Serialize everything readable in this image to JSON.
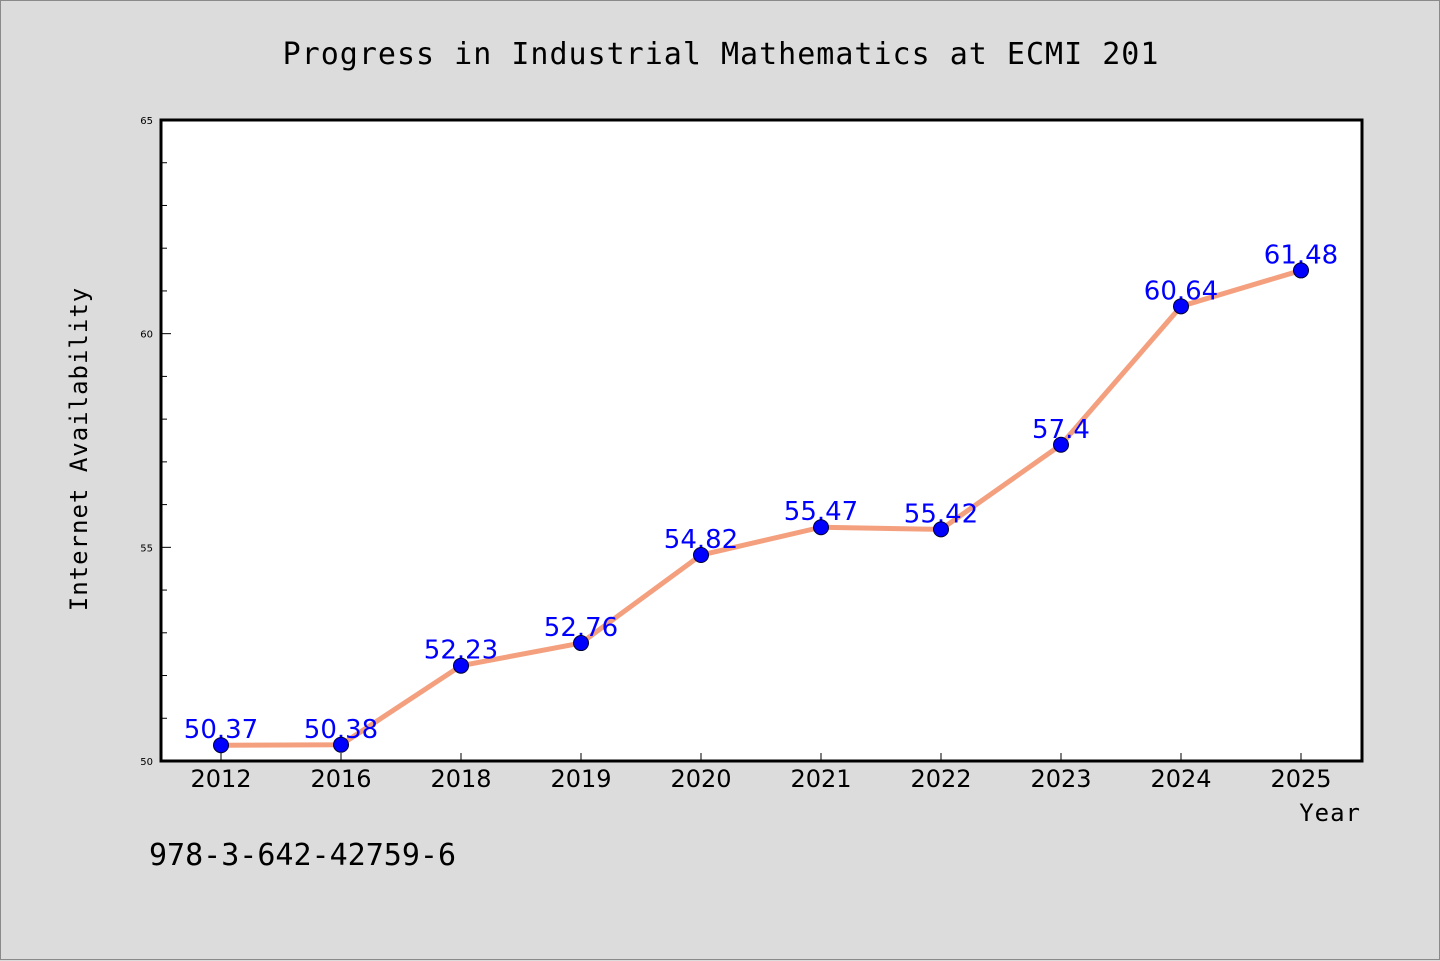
{
  "chart_data": {
    "type": "line",
    "title": "Progress in Industrial Mathematics at ECMI 201",
    "xlabel": "Year",
    "ylabel": "Internet Availability",
    "categories": [
      "2012",
      "2016",
      "2018",
      "2019",
      "2020",
      "2021",
      "2022",
      "2023",
      "2024",
      "2025"
    ],
    "series": [
      {
        "values": [
          50.37,
          50.38,
          52.23,
          52.76,
          54.82,
          55.47,
          55.42,
          57.4,
          60.64,
          61.48
        ]
      }
    ],
    "data_labels": [
      "50.37",
      "50.38",
      "52.23",
      "52.76",
      "54.82",
      "55.47",
      "55.42",
      "57.4",
      "60.64",
      "61.48"
    ],
    "ylim": [
      50,
      65
    ],
    "yticks": [
      50,
      55,
      60,
      65
    ],
    "ytick_labels": [
      "50",
      "55",
      "60",
      "65"
    ],
    "yminor_step": 1,
    "grid": false,
    "line_color": "#f4a07f",
    "marker_color": "#0000ff",
    "label_color": "#0000ff"
  },
  "footer": {
    "isbn": "978-3-642-42759-6"
  }
}
